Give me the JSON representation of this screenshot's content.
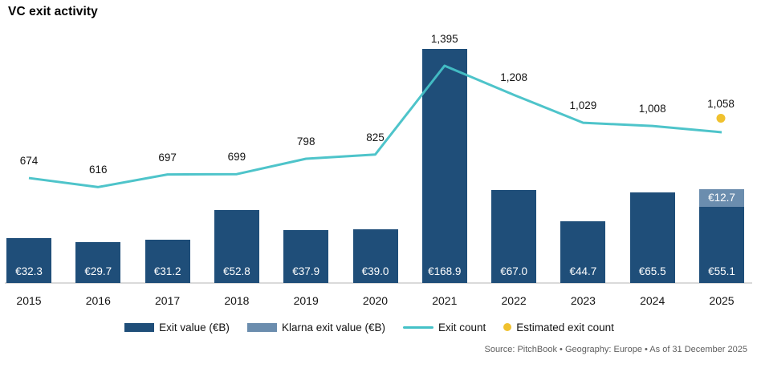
{
  "title": "VC exit activity",
  "footer": {
    "text": "Source: PitchBook  •  Geography: Europe  •  As of 31 December 2025"
  },
  "legend": [
    {
      "id": "exit-value",
      "label": "Exit value (€B)",
      "swatch": "rect",
      "color": "#1f4e79"
    },
    {
      "id": "klarna-exit-value",
      "label": "Klarna exit value (€B)",
      "swatch": "rect",
      "color": "#6b8dae"
    },
    {
      "id": "exit-count",
      "label": "Exit count",
      "swatch": "line",
      "color": "#44c1c7"
    },
    {
      "id": "estimated-exit-count",
      "label": "Estimated exit count",
      "swatch": "dot",
      "color": "#f0c12e"
    }
  ],
  "colors": {
    "bar": "#1f4e79",
    "klarna": "#6b8dae",
    "line": "#44c1c7",
    "estimated_dot": "#f0c12e",
    "axis_line": "#dadada",
    "text": "#141414",
    "bar_text": "#ffffff"
  },
  "chart_data": {
    "type": "combo (bar + stacked bar + line + point)",
    "title": "VC exit activity",
    "categories": [
      "2015",
      "2016",
      "2017",
      "2018",
      "2019",
      "2020",
      "2021",
      "2022",
      "2023",
      "2024",
      "2025"
    ],
    "series": [
      {
        "name": "Exit value (€B)",
        "type": "bar",
        "color": "#1f4e79",
        "values": [
          32.3,
          29.7,
          31.2,
          52.8,
          37.9,
          39.0,
          168.9,
          67.0,
          44.7,
          65.5,
          55.1
        ],
        "labels": [
          "€32.3",
          "€29.7",
          "€31.2",
          "€52.8",
          "€37.9",
          "€39.0",
          "€168.9",
          "€67.0",
          "€44.7",
          "€65.5",
          "€55.1"
        ]
      },
      {
        "name": "Klarna exit value (€B)",
        "type": "bar",
        "stacked_on": "Exit value (€B)",
        "color": "#6b8dae",
        "values": [
          null,
          null,
          null,
          null,
          null,
          null,
          null,
          null,
          null,
          null,
          12.7
        ],
        "labels": [
          null,
          null,
          null,
          null,
          null,
          null,
          null,
          null,
          null,
          null,
          "€12.7"
        ]
      },
      {
        "name": "Exit count",
        "type": "line",
        "color": "#44c1c7",
        "values": [
          674,
          616,
          697,
          699,
          798,
          825,
          1395,
          1208,
          1029,
          1008,
          968
        ],
        "labels": [
          "674",
          "616",
          "697",
          "699",
          "798",
          "825",
          "1,395",
          "1,208",
          "1,029",
          "1,008",
          null
        ],
        "note": "2025 line endpoint is unlabeled on the chart; value ~968 estimated from pixel position"
      },
      {
        "name": "Estimated exit count",
        "type": "point",
        "color": "#f0c12e",
        "category": "2025",
        "value": 1058,
        "label": "1,058"
      }
    ],
    "axes": {
      "x_tick_labels": [
        "2015",
        "2016",
        "2017",
        "2018",
        "2019",
        "2020",
        "2021",
        "2022",
        "2023",
        "2024",
        "2025"
      ],
      "value_axes_visible": false,
      "gridlines": false,
      "baseline_visible": true
    },
    "legend_position": "bottom",
    "source_note": "Source: PitchBook  •  Geography: Europe  •  As of 31 December 2025"
  }
}
